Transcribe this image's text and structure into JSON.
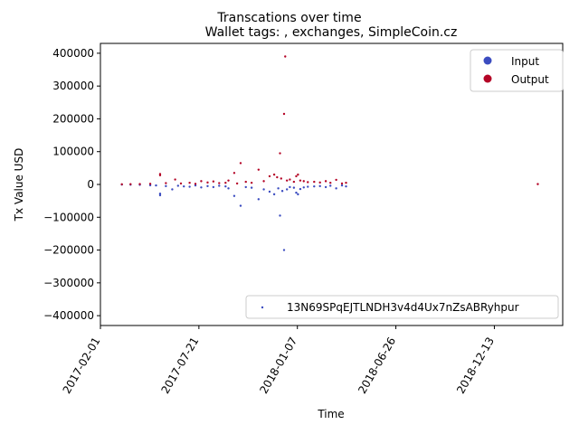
{
  "chart_data": {
    "type": "scatter",
    "suptitle": "Transcations over time",
    "title": "Wallet tags: , exchanges, SimpleCoin.cz",
    "xlabel": "Time",
    "ylabel": "Tx Value USD",
    "xlim": [
      "2017-02-01",
      "2019-04-10"
    ],
    "ylim": [
      -430000,
      430000
    ],
    "x_ticks": [
      "2017-02-01",
      "2017-07-21",
      "2018-01-07",
      "2018-06-26",
      "2018-12-13"
    ],
    "y_ticks": [
      -400000,
      -300000,
      -200000,
      -100000,
      0,
      100000,
      200000,
      300000,
      400000
    ],
    "grid": false,
    "legend_position": "upper right",
    "series": [
      {
        "name": "Input",
        "color": "#3b4cc0",
        "points": [
          [
            "2017-03-10",
            -500
          ],
          [
            "2017-03-25",
            -800
          ],
          [
            "2017-04-10",
            -1200
          ],
          [
            "2017-04-28",
            -2500
          ],
          [
            "2017-05-08",
            -3000
          ],
          [
            "2017-05-15",
            -28000
          ],
          [
            "2017-05-15",
            -33000
          ],
          [
            "2017-05-25",
            -5000
          ],
          [
            "2017-06-05",
            -15000
          ],
          [
            "2017-06-15",
            -4000
          ],
          [
            "2017-06-25",
            -6000
          ],
          [
            "2017-07-05",
            -7000
          ],
          [
            "2017-07-15",
            -3000
          ],
          [
            "2017-07-25",
            -9000
          ],
          [
            "2017-08-05",
            -5000
          ],
          [
            "2017-08-15",
            -8000
          ],
          [
            "2017-08-25",
            -4000
          ],
          [
            "2017-09-05",
            -6000
          ],
          [
            "2017-09-10",
            -12000
          ],
          [
            "2017-09-20",
            -35000
          ],
          [
            "2017-10-01",
            -65000
          ],
          [
            "2017-10-10",
            -8000
          ],
          [
            "2017-10-20",
            -10000
          ],
          [
            "2017-11-01",
            -45000
          ],
          [
            "2017-11-10",
            -15000
          ],
          [
            "2017-11-20",
            -22000
          ],
          [
            "2017-11-28",
            -30000
          ],
          [
            "2017-12-05",
            -12000
          ],
          [
            "2017-12-08",
            -95000
          ],
          [
            "2017-12-12",
            -20000
          ],
          [
            "2017-12-15",
            -200000
          ],
          [
            "2017-12-20",
            -15000
          ],
          [
            "2017-12-25",
            -8000
          ],
          [
            "2018-01-01",
            -10000
          ],
          [
            "2018-01-05",
            -25000
          ],
          [
            "2018-01-08",
            -30000
          ],
          [
            "2018-01-12",
            -14000
          ],
          [
            "2018-01-18",
            -9000
          ],
          [
            "2018-01-25",
            -7000
          ],
          [
            "2018-02-05",
            -6000
          ],
          [
            "2018-02-15",
            -5000
          ],
          [
            "2018-02-25",
            -8000
          ],
          [
            "2018-03-05",
            -4000
          ],
          [
            "2018-03-15",
            -12000
          ],
          [
            "2018-03-25",
            -3000
          ],
          [
            "2018-04-01",
            -6000
          ]
        ]
      },
      {
        "name": "Output",
        "color": "#b40426",
        "points": [
          [
            "2017-03-10",
            500
          ],
          [
            "2017-03-25",
            800
          ],
          [
            "2017-04-10",
            1200
          ],
          [
            "2017-04-28",
            2000
          ],
          [
            "2017-05-15",
            28000
          ],
          [
            "2017-05-15",
            32000
          ],
          [
            "2017-05-25",
            4000
          ],
          [
            "2017-06-10",
            15000
          ],
          [
            "2017-06-20",
            3000
          ],
          [
            "2017-07-05",
            5000
          ],
          [
            "2017-07-15",
            2000
          ],
          [
            "2017-07-25",
            10000
          ],
          [
            "2017-08-05",
            6000
          ],
          [
            "2017-08-15",
            9000
          ],
          [
            "2017-08-25",
            4000
          ],
          [
            "2017-09-05",
            5000
          ],
          [
            "2017-09-10",
            12000
          ],
          [
            "2017-09-20",
            35000
          ],
          [
            "2017-09-25",
            3000
          ],
          [
            "2017-10-01",
            65000
          ],
          [
            "2017-10-10",
            8000
          ],
          [
            "2017-10-20",
            5000
          ],
          [
            "2017-11-01",
            45000
          ],
          [
            "2017-11-10",
            10000
          ],
          [
            "2017-11-20",
            25000
          ],
          [
            "2017-11-28",
            30000
          ],
          [
            "2017-12-03",
            22000
          ],
          [
            "2017-12-08",
            95000
          ],
          [
            "2017-12-10",
            18000
          ],
          [
            "2017-12-15",
            215000
          ],
          [
            "2017-12-17",
            390000
          ],
          [
            "2017-12-20",
            12000
          ],
          [
            "2017-12-25",
            15000
          ],
          [
            "2018-01-01",
            8000
          ],
          [
            "2018-01-05",
            25000
          ],
          [
            "2018-01-08",
            30000
          ],
          [
            "2018-01-12",
            12000
          ],
          [
            "2018-01-18",
            10000
          ],
          [
            "2018-01-25",
            7000
          ],
          [
            "2018-02-05",
            8000
          ],
          [
            "2018-02-15",
            6000
          ],
          [
            "2018-02-25",
            10000
          ],
          [
            "2018-03-05",
            5000
          ],
          [
            "2018-03-15",
            14000
          ],
          [
            "2018-03-25",
            3000
          ],
          [
            "2018-04-01",
            5000
          ],
          [
            "2019-02-26",
            1000
          ]
        ]
      }
    ],
    "address": {
      "name": "13N69SPqEJTLNDH3v4d4Ux7nZsABRyhpur",
      "color": "#3b4cc0"
    }
  }
}
